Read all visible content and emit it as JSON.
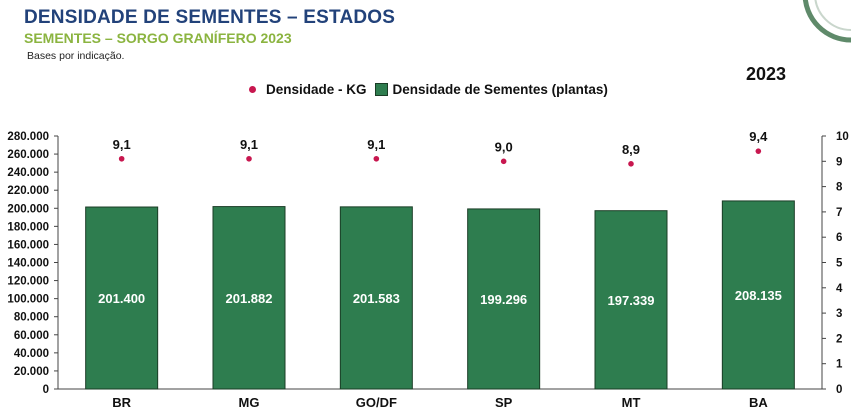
{
  "header": {
    "title": "DENSIDADE DE SEMENTES – ESTADOS",
    "subtitle": "SEMENTES – SORGO GRANÍFERO 2023",
    "note": "Bases por indicação.",
    "year": "2023"
  },
  "legend": {
    "density_kg": "Densidade - KG",
    "density_plants": "Densidade de Sementes (plantas)"
  },
  "colors": {
    "bar": "#2e7d4f",
    "dot": "#c8174f",
    "title": "#22427a",
    "subtitle": "#8bb440"
  },
  "chart_data": {
    "type": "bar",
    "categories": [
      "BR",
      "MG",
      "GO/DF",
      "SP",
      "MT",
      "BA"
    ],
    "series": [
      {
        "name": "Densidade de Sementes (plantas)",
        "axis": "left",
        "values": [
          201400,
          201882,
          201583,
          199296,
          197339,
          208135
        ],
        "labels": [
          "201.400",
          "201.882",
          "201.583",
          "199.296",
          "197.339",
          "208.135"
        ]
      },
      {
        "name": "Densidade - KG",
        "axis": "right",
        "type": "scatter",
        "values": [
          9.1,
          9.1,
          9.1,
          9.0,
          8.9,
          9.4
        ],
        "labels": [
          "9,1",
          "9,1",
          "9,1",
          "9,0",
          "8,9",
          "9,4"
        ]
      }
    ],
    "ylim_left": [
      0,
      280000
    ],
    "ylim_right": [
      0,
      10
    ],
    "yticks_left": [
      "0",
      "20.000",
      "40.000",
      "60.000",
      "80.000",
      "100.000",
      "120.000",
      "140.000",
      "160.000",
      "180.000",
      "200.000",
      "220.000",
      "240.000",
      "260.000",
      "280.000"
    ],
    "yticks_right": [
      "0",
      "1",
      "2",
      "3",
      "4",
      "5",
      "6",
      "7",
      "8",
      "9",
      "10"
    ],
    "grid": false,
    "legend_position": "top"
  }
}
